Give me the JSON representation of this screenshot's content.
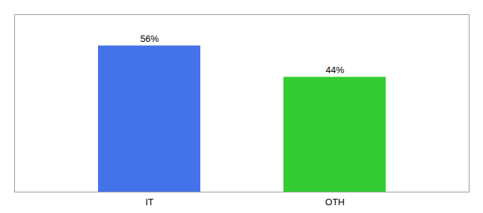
{
  "chart_data": {
    "type": "bar",
    "categories": [
      "IT",
      "OTH"
    ],
    "values": [
      56,
      44
    ],
    "colors": [
      "#4472e8",
      "#33cc33"
    ],
    "value_labels": [
      "56%",
      "44%"
    ],
    "data_labels": true,
    "ylim": [
      0,
      68
    ],
    "tick_labels": "x"
  }
}
